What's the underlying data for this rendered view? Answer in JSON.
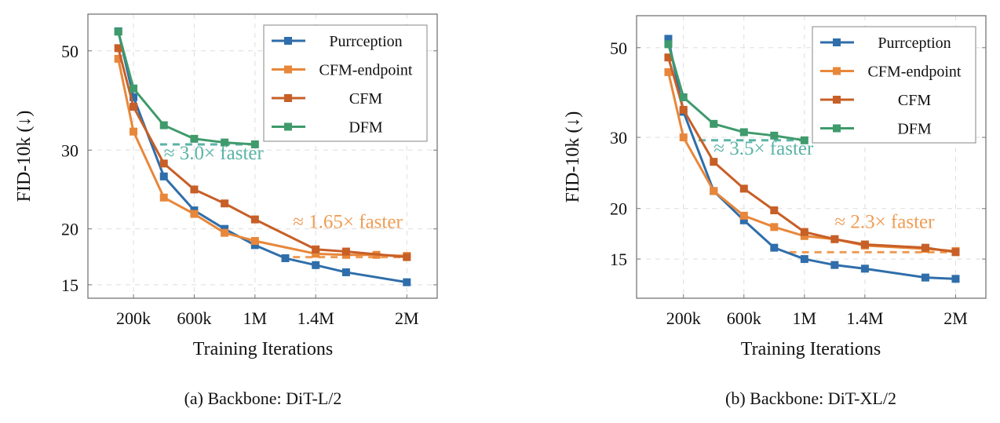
{
  "colors": {
    "Purrception": "#2f6eaa",
    "CFM-endpoint": "#e8873a",
    "CFM": "#c75f27",
    "DFM": "#3f9a6c",
    "annot_teal": "#5ab3a6",
    "annot_orange": "#ee9c55"
  },
  "chart_data": [
    {
      "type": "line",
      "caption": "(a) Backbone: DiT-L/2",
      "xlabel": "Training Iterations",
      "ylabel": "FID-10k (↓)",
      "yscale": "log",
      "xlim": [
        -100000,
        2200000
      ],
      "ylim": [
        14,
        60.4
      ],
      "grid": true,
      "legend_position": "top-right",
      "xticks": [
        {
          "v": 200000,
          "label": "200k"
        },
        {
          "v": 600000,
          "label": "600k"
        },
        {
          "v": 1000000,
          "label": "1M"
        },
        {
          "v": 1400000,
          "label": "1.4M"
        },
        {
          "v": 2000000,
          "label": "2M"
        }
      ],
      "yticks": [
        {
          "v": 50,
          "label": "50"
        },
        {
          "v": 30,
          "label": "30"
        },
        {
          "v": 20,
          "label": "20"
        },
        {
          "v": 15,
          "label": "15"
        }
      ],
      "series": [
        {
          "name": "Purrception",
          "x": [
            100000,
            200000,
            400000,
            600000,
            800000,
            1000000,
            1200000,
            1400000,
            1600000,
            2000000
          ],
          "y": [
            55.3,
            39.4,
            26.2,
            22.0,
            20.0,
            18.4,
            17.2,
            16.6,
            16.0,
            15.2
          ]
        },
        {
          "name": "CFM-endpoint",
          "x": [
            100000,
            200000,
            400000,
            600000,
            800000,
            1000000,
            1400000,
            1600000,
            1800000,
            2000000
          ],
          "y": [
            48.0,
            33.0,
            23.5,
            21.6,
            19.6,
            18.8,
            17.6,
            17.5,
            17.5,
            17.4
          ]
        },
        {
          "name": "CFM",
          "x": [
            100000,
            200000,
            400000,
            600000,
            800000,
            1000000,
            1400000,
            1600000,
            2000000
          ],
          "y": [
            50.7,
            37.5,
            28.0,
            24.5,
            22.8,
            21.0,
            18.0,
            17.8,
            17.3
          ]
        },
        {
          "name": "DFM",
          "x": [
            100000,
            200000,
            400000,
            600000,
            800000,
            1000000
          ],
          "y": [
            55.2,
            41.2,
            34.1,
            31.8,
            31.2,
            30.9
          ]
        }
      ],
      "reference_lines": [
        {
          "color_key": "annot_teal",
          "y": 30.9,
          "x": [
            375000,
            1000000
          ]
        },
        {
          "color_key": "annot_orange",
          "y": 17.3,
          "x": [
            1250000,
            2000000
          ]
        }
      ],
      "annotations": [
        {
          "text": "≈ 3.0× faster",
          "color_key": "annot_teal",
          "x": 400000,
          "y": 28.6
        },
        {
          "text": "≈ 1.65× faster",
          "color_key": "annot_orange",
          "x": 1250000,
          "y": 20.1
        }
      ]
    },
    {
      "type": "line",
      "caption": "(b) Backbone: DiT-XL/2",
      "xlabel": "Training Iterations",
      "ylabel": "FID-10k (↓)",
      "yscale": "log",
      "xlim": [
        -110000,
        2200000
      ],
      "ylim": [
        12,
        60
      ],
      "grid": true,
      "legend_position": "top-right",
      "xticks": [
        {
          "v": 200000,
          "label": "200k"
        },
        {
          "v": 600000,
          "label": "600k"
        },
        {
          "v": 1000000,
          "label": "1M"
        },
        {
          "v": 1400000,
          "label": "1.4M"
        },
        {
          "v": 2000000,
          "label": "2M"
        }
      ],
      "yticks": [
        {
          "v": 50,
          "label": "50"
        },
        {
          "v": 30,
          "label": "30"
        },
        {
          "v": 20,
          "label": "20"
        },
        {
          "v": 15,
          "label": "15"
        }
      ],
      "series": [
        {
          "name": "Purrception",
          "x": [
            100000,
            200000,
            400000,
            600000,
            800000,
            1000000,
            1200000,
            1400000,
            1800000,
            2000000
          ],
          "y": [
            52.6,
            34.7,
            22.1,
            18.7,
            16.0,
            15.0,
            14.5,
            14.2,
            13.5,
            13.4
          ]
        },
        {
          "name": "CFM-endpoint",
          "x": [
            100000,
            200000,
            400000,
            600000,
            800000,
            1000000,
            1200000,
            1400000,
            1800000,
            2000000
          ],
          "y": [
            43.5,
            30.0,
            22.1,
            19.2,
            18.0,
            17.1,
            16.8,
            16.2,
            15.9,
            15.7
          ]
        },
        {
          "name": "CFM",
          "x": [
            100000,
            200000,
            400000,
            600000,
            800000,
            1000000,
            1200000,
            1400000,
            1800000,
            2000000
          ],
          "y": [
            47.3,
            35.1,
            26.1,
            22.4,
            19.8,
            17.5,
            16.8,
            16.3,
            16.0,
            15.6
          ]
        },
        {
          "name": "DFM",
          "x": [
            100000,
            200000,
            400000,
            600000,
            800000,
            1000000
          ],
          "y": [
            51.0,
            37.7,
            32.4,
            30.9,
            30.3,
            29.5
          ]
        }
      ],
      "reference_lines": [
        {
          "color_key": "annot_teal",
          "y": 29.5,
          "x": [
            300000,
            1000000
          ]
        },
        {
          "color_key": "annot_orange",
          "y": 15.6,
          "x": [
            900000,
            2000000
          ]
        }
      ],
      "annotations": [
        {
          "text": "≈ 3.5× faster",
          "color_key": "annot_teal",
          "x": 400000,
          "y": 27.2
        },
        {
          "text": "≈ 2.3× faster",
          "color_key": "annot_orange",
          "x": 1200000,
          "y": 17.9
        }
      ]
    }
  ]
}
